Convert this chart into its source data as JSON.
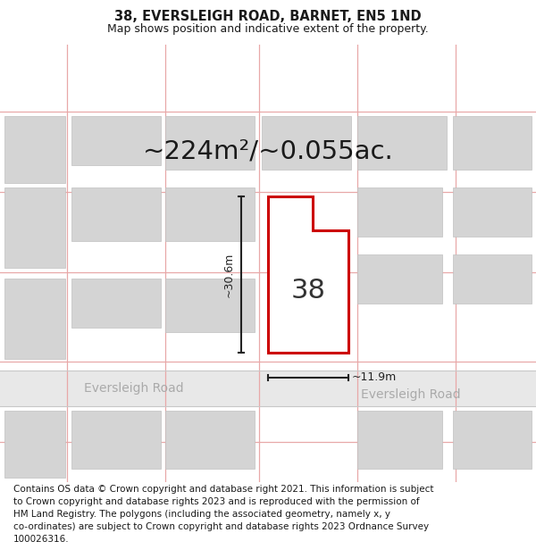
{
  "title_line1": "38, EVERSLEIGH ROAD, BARNET, EN5 1ND",
  "title_line2": "Map shows position and indicative extent of the property.",
  "area_text": "~224m²/~0.055ac.",
  "label_38": "38",
  "dim_height": "~30.6m",
  "dim_width": "~11.9m",
  "street_label1": "Eversleigh Road",
  "street_label2": "Eversleigh Road",
  "copyright_text": "Contains OS data © Crown copyright and database right 2021. This information is subject\nto Crown copyright and database rights 2023 and is reproduced with the permission of\nHM Land Registry. The polygons (including the associated geometry, namely x, y\nco-ordinates) are subject to Crown copyright and database rights 2023 Ordnance Survey\n100026316.",
  "background_color": "#ffffff",
  "map_bg_color": "#f2f2f2",
  "grid_color": "#e8a8a8",
  "building_color": "#d4d4d4",
  "building_outline": "#c0c0c0",
  "road_color": "#e0e0e0",
  "property_color": "#ffffff",
  "property_outline": "#cc0000",
  "dim_color": "#222222",
  "title_fontsize": 10.5,
  "subtitle_fontsize": 9,
  "area_fontsize": 21,
  "label_fontsize": 22,
  "street_fontsize": 10,
  "copyright_fontsize": 7.5
}
